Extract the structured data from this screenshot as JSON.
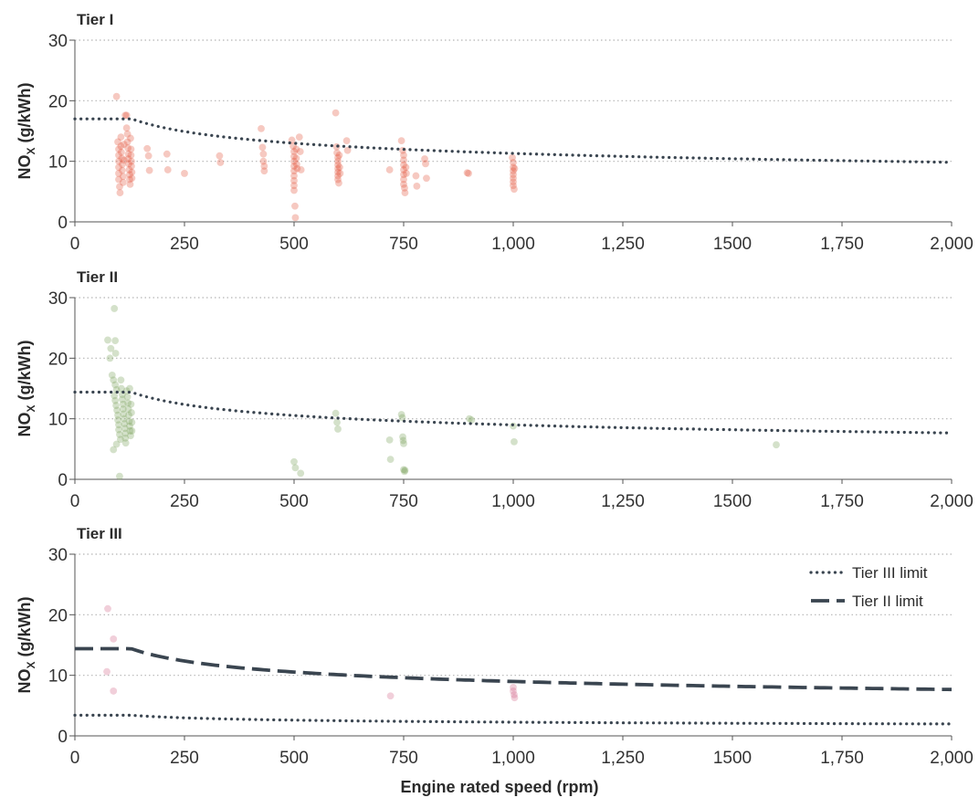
{
  "figure": {
    "x_axis_label": "Engine rated speed (rpm)",
    "y_axis_label_main": "NO",
    "y_axis_label_sub": "X",
    "y_axis_label_tail": " (g/kWh)"
  },
  "chart_data": [
    {
      "type": "scatter",
      "title": "Tier I",
      "xlabel": "Engine rated speed (rpm)",
      "ylabel": "NOx (g/kWh)",
      "xlim": [
        0,
        2000
      ],
      "ylim": [
        0,
        30
      ],
      "x_ticks": [
        0,
        250,
        500,
        750,
        1000,
        1250,
        1500,
        1750,
        2000
      ],
      "x_tick_labels": [
        "0",
        "250",
        "500",
        "750",
        "1,000",
        "1,250",
        "1500",
        "1,750",
        "2,000"
      ],
      "y_ticks": [
        0,
        10,
        20,
        30
      ],
      "y_tick_labels": [
        "0",
        "10",
        "20",
        "30"
      ],
      "grid": "horizontal dotted",
      "point_color": "#e2583e",
      "lines": [
        {
          "name": "",
          "style": "dotted",
          "color": "#3a4550",
          "formula": "tier1",
          "limit_below_130": 17.0
        }
      ],
      "points": [
        [
          95,
          20.7
        ],
        [
          98,
          13.2
        ],
        [
          100,
          12.0
        ],
        [
          100,
          11.0
        ],
        [
          100,
          10.0
        ],
        [
          100,
          9.0
        ],
        [
          100,
          8.0
        ],
        [
          100,
          7.0
        ],
        [
          102,
          5.8
        ],
        [
          103,
          4.8
        ],
        [
          105,
          14.0
        ],
        [
          105,
          12.5
        ],
        [
          106,
          11.5
        ],
        [
          107,
          10.5
        ],
        [
          108,
          9.5
        ],
        [
          108,
          8.5
        ],
        [
          110,
          7.5
        ],
        [
          110,
          6.5
        ],
        [
          112,
          12.8
        ],
        [
          112,
          10.2
        ],
        [
          115,
          17.6
        ],
        [
          118,
          17.6
        ],
        [
          118,
          15.5
        ],
        [
          120,
          14.5
        ],
        [
          120,
          13.2
        ],
        [
          121,
          12.2
        ],
        [
          122,
          11.2
        ],
        [
          122,
          10.4
        ],
        [
          123,
          9.6
        ],
        [
          124,
          8.6
        ],
        [
          125,
          7.8
        ],
        [
          125,
          7.0
        ],
        [
          126,
          6.2
        ],
        [
          127,
          13.8
        ],
        [
          128,
          12.0
        ],
        [
          128,
          11.0
        ],
        [
          129,
          10.0
        ],
        [
          129,
          9.2
        ],
        [
          130,
          8.2
        ],
        [
          130,
          7.2
        ],
        [
          165,
          12.1
        ],
        [
          168,
          10.9
        ],
        [
          170,
          8.5
        ],
        [
          210,
          11.2
        ],
        [
          212,
          8.6
        ],
        [
          250,
          8.0
        ],
        [
          330,
          10.9
        ],
        [
          332,
          9.8
        ],
        [
          425,
          15.4
        ],
        [
          428,
          12.3
        ],
        [
          430,
          11.2
        ],
        [
          430,
          10.0
        ],
        [
          432,
          9.2
        ],
        [
          432,
          8.4
        ],
        [
          495,
          13.5
        ],
        [
          498,
          12.5
        ],
        [
          500,
          11.6
        ],
        [
          500,
          10.8
        ],
        [
          500,
          10.0
        ],
        [
          500,
          9.2
        ],
        [
          500,
          8.4
        ],
        [
          500,
          7.6
        ],
        [
          500,
          6.8
        ],
        [
          500,
          6.0
        ],
        [
          500,
          5.2
        ],
        [
          502,
          2.6
        ],
        [
          503,
          0.7
        ],
        [
          505,
          12.0
        ],
        [
          505,
          10.5
        ],
        [
          506,
          9.5
        ],
        [
          507,
          8.8
        ],
        [
          512,
          14.0
        ],
        [
          514,
          11.6
        ],
        [
          516,
          8.6
        ],
        [
          595,
          18.0
        ],
        [
          597,
          12.4
        ],
        [
          598,
          11.4
        ],
        [
          600,
          10.6
        ],
        [
          600,
          10.0
        ],
        [
          600,
          9.4
        ],
        [
          600,
          8.8
        ],
        [
          600,
          8.2
        ],
        [
          600,
          7.6
        ],
        [
          600,
          7.0
        ],
        [
          602,
          6.4
        ],
        [
          603,
          11.0
        ],
        [
          604,
          9.0
        ],
        [
          605,
          8.0
        ],
        [
          620,
          13.4
        ],
        [
          622,
          11.8
        ],
        [
          718,
          8.6
        ],
        [
          745,
          13.4
        ],
        [
          748,
          11.8
        ],
        [
          750,
          11.0
        ],
        [
          750,
          10.2
        ],
        [
          750,
          9.4
        ],
        [
          750,
          8.6
        ],
        [
          750,
          7.8
        ],
        [
          750,
          7.0
        ],
        [
          750,
          6.2
        ],
        [
          752,
          5.6
        ],
        [
          753,
          4.8
        ],
        [
          755,
          9.0
        ],
        [
          756,
          8.0
        ],
        [
          778,
          7.6
        ],
        [
          780,
          5.9
        ],
        [
          798,
          10.4
        ],
        [
          800,
          9.6
        ],
        [
          802,
          7.2
        ],
        [
          895,
          8.1
        ],
        [
          898,
          8.0
        ],
        [
          998,
          10.6
        ],
        [
          1000,
          9.8
        ],
        [
          1000,
          9.0
        ],
        [
          1000,
          8.4
        ],
        [
          1000,
          7.8
        ],
        [
          1000,
          7.2
        ],
        [
          1000,
          6.6
        ],
        [
          1000,
          6.0
        ],
        [
          1002,
          5.4
        ],
        [
          1003,
          8.8
        ]
      ]
    },
    {
      "type": "scatter",
      "title": "Tier II",
      "xlabel": "Engine rated speed (rpm)",
      "ylabel": "NOx (g/kWh)",
      "xlim": [
        0,
        2000
      ],
      "ylim": [
        0,
        30
      ],
      "x_ticks": [
        0,
        250,
        500,
        750,
        1000,
        1250,
        1500,
        1750,
        2000
      ],
      "x_tick_labels": [
        "0",
        "250",
        "500",
        "750",
        "1,000",
        "1,250",
        "1500",
        "1,750",
        "2,000"
      ],
      "y_ticks": [
        0,
        10,
        20,
        30
      ],
      "y_tick_labels": [
        "0",
        "10",
        "20",
        "30"
      ],
      "grid": "horizontal dotted",
      "point_color": "#7aa25a",
      "lines": [
        {
          "name": "",
          "style": "dotted",
          "color": "#3a4550",
          "formula": "tier2",
          "limit_below_130": 14.4
        }
      ],
      "points": [
        [
          75,
          23.0
        ],
        [
          80,
          20.0
        ],
        [
          82,
          21.6
        ],
        [
          90,
          28.2
        ],
        [
          92,
          22.9
        ],
        [
          93,
          20.8
        ],
        [
          85,
          17.2
        ],
        [
          88,
          16.4
        ],
        [
          92,
          15.6
        ],
        [
          95,
          14.8
        ],
        [
          90,
          13.8
        ],
        [
          92,
          13.0
        ],
        [
          94,
          12.2
        ],
        [
          96,
          11.4
        ],
        [
          98,
          10.6
        ],
        [
          98,
          9.8
        ],
        [
          100,
          9.0
        ],
        [
          100,
          8.2
        ],
        [
          102,
          7.4
        ],
        [
          104,
          6.6
        ],
        [
          95,
          5.8
        ],
        [
          88,
          4.9
        ],
        [
          102,
          0.5
        ],
        [
          105,
          16.4
        ],
        [
          106,
          15.0
        ],
        [
          108,
          14.0
        ],
        [
          108,
          13.2
        ],
        [
          110,
          12.4
        ],
        [
          110,
          11.6
        ],
        [
          111,
          10.8
        ],
        [
          112,
          10.0
        ],
        [
          113,
          9.2
        ],
        [
          114,
          8.4
        ],
        [
          115,
          7.6
        ],
        [
          115,
          6.8
        ],
        [
          116,
          6.0
        ],
        [
          118,
          14.6
        ],
        [
          120,
          13.6
        ],
        [
          121,
          12.6
        ],
        [
          122,
          11.6
        ],
        [
          123,
          10.6
        ],
        [
          124,
          9.6
        ],
        [
          125,
          8.8
        ],
        [
          126,
          8.0
        ],
        [
          127,
          7.2
        ],
        [
          128,
          12.4
        ],
        [
          129,
          11.0
        ],
        [
          130,
          9.4
        ],
        [
          130,
          8.0
        ],
        [
          125,
          15.0
        ],
        [
          500,
          2.9
        ],
        [
          503,
          1.9
        ],
        [
          515,
          1.0
        ],
        [
          595,
          10.9
        ],
        [
          598,
          9.4
        ],
        [
          600,
          8.3
        ],
        [
          718,
          6.5
        ],
        [
          720,
          3.3
        ],
        [
          745,
          10.7
        ],
        [
          747,
          10.2
        ],
        [
          748,
          7.0
        ],
        [
          749,
          6.4
        ],
        [
          750,
          5.9
        ],
        [
          750,
          1.6
        ],
        [
          752,
          1.3
        ],
        [
          753,
          1.5
        ],
        [
          900,
          10.0
        ],
        [
          905,
          9.8
        ],
        [
          1000,
          8.8
        ],
        [
          1002,
          6.2
        ],
        [
          1600,
          5.7
        ]
      ]
    },
    {
      "type": "scatter",
      "title": "Tier III",
      "xlabel": "Engine rated speed (rpm)",
      "ylabel": "NOx (g/kWh)",
      "xlim": [
        0,
        2000
      ],
      "ylim": [
        0,
        30
      ],
      "x_ticks": [
        0,
        250,
        500,
        750,
        1000,
        1250,
        1500,
        1750,
        2000
      ],
      "x_tick_labels": [
        "0",
        "250",
        "500",
        "750",
        "1,000",
        "1,250",
        "1500",
        "1,750",
        "2,000"
      ],
      "y_ticks": [
        0,
        10,
        20,
        30
      ],
      "y_tick_labels": [
        "0",
        "10",
        "20",
        "30"
      ],
      "grid": "horizontal dotted",
      "legend_position": "top-right",
      "point_color": "#d36b8c",
      "lines": [
        {
          "name": "Tier III limit",
          "style": "dotted",
          "color": "#3a4550",
          "formula": "tier3",
          "limit_below_130": 3.4
        },
        {
          "name": "Tier II limit",
          "style": "dashed",
          "color": "#3a4550",
          "formula": "tier2",
          "limit_below_130": 14.4
        }
      ],
      "points": [
        [
          75,
          21.0
        ],
        [
          73,
          10.6
        ],
        [
          88,
          16.0
        ],
        [
          88,
          7.4
        ],
        [
          720,
          6.6
        ],
        [
          1000,
          8.0
        ],
        [
          1000,
          7.4
        ],
        [
          1002,
          6.8
        ],
        [
          1003,
          6.3
        ]
      ]
    }
  ]
}
